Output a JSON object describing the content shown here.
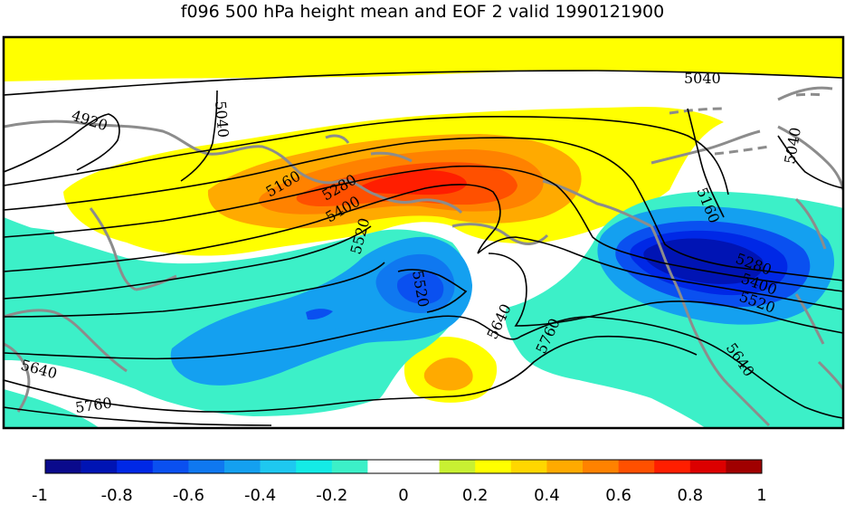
{
  "title": "f096 500 hPa height mean and EOF 2 valid 1990121900",
  "contour_labels": [
    "4920",
    "5040",
    "5040",
    "5040",
    "5160",
    "5160",
    "5280",
    "5280",
    "5400",
    "5400",
    "5520",
    "5520",
    "5520",
    "5640",
    "5640",
    "5640",
    "5760",
    "5760"
  ],
  "colorbar": {
    "ticks": [
      "-1",
      "-0.8",
      "-0.6",
      "-0.4",
      "-0.2",
      "0",
      "0.2",
      "0.4",
      "0.6",
      "0.8",
      "1"
    ],
    "colors": [
      "#0a0a8c",
      "#0014b4",
      "#0028e6",
      "#0a50f0",
      "#0f78f0",
      "#14a0f0",
      "#1ec8f0",
      "#14ebe6",
      "#3cf0c8",
      "#ffffff",
      "#ffffff",
      "#c8f032",
      "#ffff00",
      "#ffd700",
      "#ffaa00",
      "#ff8200",
      "#ff5000",
      "#ff1e00",
      "#dc0000",
      "#a00000"
    ]
  }
}
